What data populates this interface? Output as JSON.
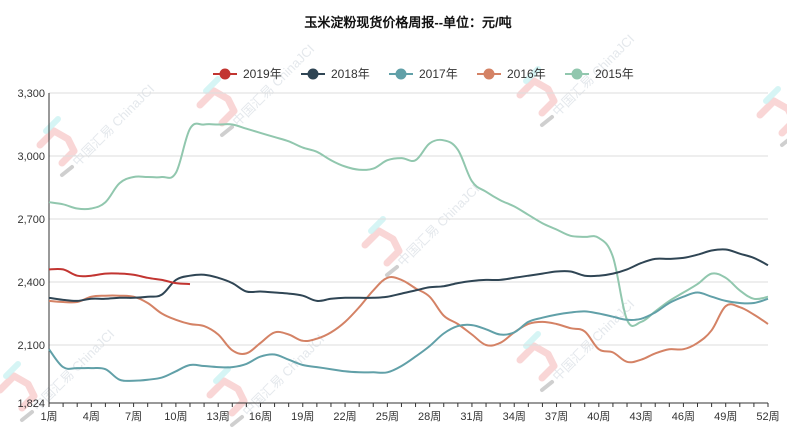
{
  "colors": {
    "2019": "#c23531",
    "2018": "#2f4554",
    "2017": "#61a0a8",
    "2016": "#d48265",
    "2015": "#91c7ae",
    "watermark_red": "#f7c5c5",
    "watermark_cyan": "#ccf3f3"
  },
  "watermark": {
    "text": "中国汇易 ChinaJCI"
  },
  "chart_data": {
    "type": "line",
    "title": "玉米淀粉现货价格周报--单位：元/吨",
    "legend_position": "top-center",
    "grid": true,
    "x_labels_shown": [
      "1周",
      "4周",
      "7周",
      "10周",
      "13周",
      "16周",
      "19周",
      "22周",
      "25周",
      "28周",
      "31周",
      "34周",
      "37周",
      "40周",
      "43周",
      "46周",
      "49周",
      "52周"
    ],
    "xlim": [
      1,
      52
    ],
    "y_ticks": [
      "1,824",
      "2,100",
      "2,400",
      "2,700",
      "3,000",
      "3,300"
    ],
    "y_tick_values": [
      1824,
      2100,
      2400,
      2700,
      3000,
      3300
    ],
    "ylim": [
      1824,
      3300
    ],
    "series": [
      {
        "name": "2019年",
        "color_key": "2019",
        "x": [
          1,
          2,
          3,
          4,
          5,
          6,
          7,
          8,
          9,
          10,
          11
        ],
        "y": [
          2460,
          2460,
          2430,
          2430,
          2440,
          2440,
          2435,
          2420,
          2410,
          2395,
          2390
        ]
      },
      {
        "name": "2018年",
        "color_key": "2018",
        "x": [
          1,
          2,
          3,
          4,
          5,
          6,
          7,
          8,
          9,
          10,
          11,
          12,
          13,
          14,
          15,
          16,
          17,
          18,
          19,
          20,
          21,
          22,
          23,
          24,
          25,
          26,
          27,
          28,
          29,
          30,
          31,
          32,
          33,
          34,
          35,
          36,
          37,
          38,
          39,
          40,
          41,
          42,
          43,
          44,
          45,
          46,
          47,
          48,
          49,
          50,
          51,
          52
        ],
        "y": [
          2325,
          2315,
          2310,
          2320,
          2320,
          2325,
          2325,
          2330,
          2340,
          2410,
          2430,
          2435,
          2420,
          2395,
          2355,
          2355,
          2350,
          2345,
          2335,
          2310,
          2320,
          2325,
          2325,
          2325,
          2330,
          2345,
          2360,
          2375,
          2380,
          2395,
          2405,
          2410,
          2410,
          2420,
          2430,
          2440,
          2450,
          2450,
          2430,
          2430,
          2440,
          2460,
          2490,
          2510,
          2510,
          2515,
          2530,
          2550,
          2555,
          2535,
          2515,
          2480
        ]
      },
      {
        "name": "2017年",
        "color_key": "2017",
        "x": [
          1,
          2,
          3,
          4,
          5,
          6,
          7,
          8,
          9,
          10,
          11,
          12,
          13,
          14,
          15,
          16,
          17,
          18,
          19,
          20,
          21,
          22,
          23,
          24,
          25,
          26,
          27,
          28,
          29,
          30,
          31,
          32,
          33,
          34,
          35,
          36,
          37,
          38,
          39,
          40,
          41,
          42,
          43,
          44,
          45,
          46,
          47,
          48,
          49,
          50,
          51,
          52
        ],
        "y": [
          2080,
          1995,
          1990,
          1990,
          1985,
          1935,
          1930,
          1935,
          1945,
          1975,
          2005,
          2000,
          1995,
          1995,
          2010,
          2045,
          2055,
          2030,
          2005,
          1995,
          1985,
          1975,
          1970,
          1970,
          1970,
          2000,
          2045,
          2095,
          2155,
          2190,
          2195,
          2175,
          2150,
          2160,
          2210,
          2230,
          2245,
          2255,
          2260,
          2250,
          2235,
          2220,
          2225,
          2255,
          2300,
          2330,
          2350,
          2330,
          2310,
          2300,
          2300,
          2320
        ]
      },
      {
        "name": "2016年",
        "color_key": "2016",
        "x": [
          1,
          2,
          3,
          4,
          5,
          6,
          7,
          8,
          9,
          10,
          11,
          12,
          13,
          14,
          15,
          16,
          17,
          18,
          19,
          20,
          21,
          22,
          23,
          24,
          25,
          26,
          27,
          28,
          29,
          30,
          31,
          32,
          33,
          34,
          35,
          36,
          37,
          38,
          39,
          40,
          41,
          42,
          43,
          44,
          45,
          46,
          47,
          48,
          49,
          50,
          51,
          52
        ],
        "y": [
          2310,
          2305,
          2305,
          2330,
          2335,
          2335,
          2330,
          2300,
          2250,
          2220,
          2200,
          2190,
          2150,
          2075,
          2060,
          2110,
          2160,
          2150,
          2120,
          2130,
          2160,
          2210,
          2280,
          2360,
          2420,
          2410,
          2370,
          2330,
          2240,
          2200,
          2150,
          2100,
          2110,
          2160,
          2200,
          2210,
          2200,
          2180,
          2165,
          2080,
          2065,
          2020,
          2030,
          2060,
          2080,
          2080,
          2110,
          2170,
          2285,
          2280,
          2245,
          2200
        ]
      },
      {
        "name": "2015年",
        "color_key": "2015",
        "x": [
          1,
          2,
          3,
          4,
          5,
          6,
          7,
          8,
          9,
          10,
          11,
          12,
          13,
          14,
          15,
          16,
          17,
          18,
          19,
          20,
          21,
          22,
          23,
          24,
          25,
          26,
          27,
          28,
          29,
          30,
          31,
          32,
          33,
          34,
          35,
          36,
          37,
          38,
          39,
          40,
          41,
          42,
          43,
          44,
          45,
          46,
          47,
          48,
          49,
          50,
          51,
          52
        ],
        "y": [
          2780,
          2770,
          2750,
          2750,
          2780,
          2870,
          2900,
          2900,
          2900,
          2920,
          3130,
          3150,
          3150,
          3150,
          3130,
          3110,
          3090,
          3070,
          3040,
          3020,
          2980,
          2950,
          2935,
          2940,
          2980,
          2990,
          2980,
          3060,
          3075,
          3030,
          2880,
          2830,
          2790,
          2760,
          2720,
          2680,
          2650,
          2620,
          2615,
          2610,
          2520,
          2220,
          2210,
          2260,
          2310,
          2350,
          2390,
          2440,
          2420,
          2360,
          2320,
          2330
        ]
      }
    ]
  }
}
